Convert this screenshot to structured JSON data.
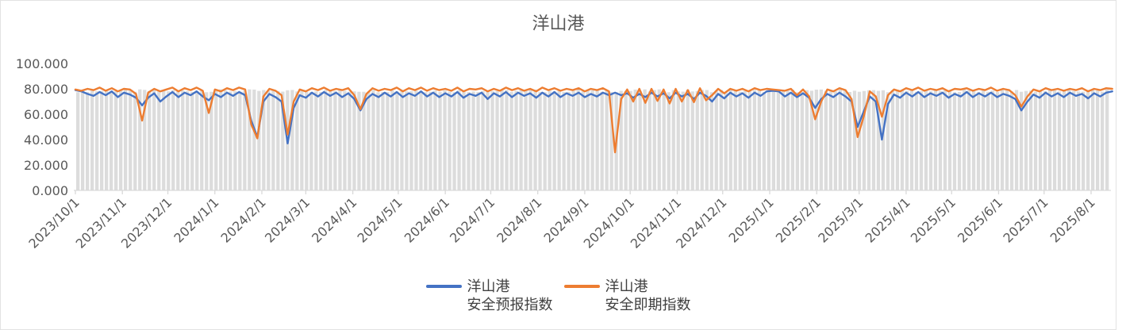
{
  "title": "洋山港",
  "legend": {
    "items": [
      {
        "line1": "洋山港",
        "line2": "安全预报指数",
        "color": "#4472C4"
      },
      {
        "line1": "洋山港",
        "line2": "安全即期指数",
        "color": "#ED7D31"
      }
    ]
  },
  "chart_data": {
    "type": "line",
    "title": "洋山港",
    "xlabel": "",
    "ylabel": "",
    "ylim": [
      0,
      100
    ],
    "grid": false,
    "legend_position": "bottom",
    "y_ticks": [
      {
        "value": 0,
        "label": "0.000"
      },
      {
        "value": 20,
        "label": "20.000"
      },
      {
        "value": 40,
        "label": "40.000"
      },
      {
        "value": 60,
        "label": "60.000"
      },
      {
        "value": 80,
        "label": "80.000"
      },
      {
        "value": 100,
        "label": "100.000"
      }
    ],
    "x_start_date": "2023/10/1",
    "x_end_day": 684,
    "sample_interval_days": 4,
    "x_ticks": [
      {
        "label": "2023/10/1",
        "day": 0
      },
      {
        "label": "2023/11/1",
        "day": 31
      },
      {
        "label": "2023/12/1",
        "day": 61
      },
      {
        "label": "2024/1/1",
        "day": 92
      },
      {
        "label": "2024/2/1",
        "day": 123
      },
      {
        "label": "2024/3/1",
        "day": 152
      },
      {
        "label": "2024/4/1",
        "day": 183
      },
      {
        "label": "2024/5/1",
        "day": 213
      },
      {
        "label": "2024/6/1",
        "day": 244
      },
      {
        "label": "2024/7/1",
        "day": 274
      },
      {
        "label": "2024/8/1",
        "day": 305
      },
      {
        "label": "2024/9/1",
        "day": 336
      },
      {
        "label": "2024/10/1",
        "day": 366
      },
      {
        "label": "2024/11/1",
        "day": 397
      },
      {
        "label": "2024/12/1",
        "day": 427
      },
      {
        "label": "2025/1/1",
        "day": 458
      },
      {
        "label": "2025/2/1",
        "day": 489
      },
      {
        "label": "2025/3/1",
        "day": 517
      },
      {
        "label": "2025/4/1",
        "day": 548
      },
      {
        "label": "2025/5/1",
        "day": 578
      },
      {
        "label": "2025/6/1",
        "day": 609
      },
      {
        "label": "2025/7/1",
        "day": 639
      },
      {
        "label": "2025/8/1",
        "day": 670
      }
    ],
    "series": [
      {
        "name": "洋山港安全预报指数",
        "color": "#4472C4",
        "values": [
          79,
          78,
          76,
          74.5,
          77.5,
          75,
          78,
          73.5,
          77,
          75.5,
          73,
          67,
          73,
          76.5,
          70,
          74,
          77.5,
          73.5,
          77,
          75,
          78,
          74,
          71,
          76,
          73.5,
          77,
          74.5,
          77.5,
          75,
          55,
          42,
          70,
          76,
          73.5,
          70,
          37,
          65,
          75,
          73,
          77,
          74,
          77.5,
          74.5,
          77,
          73.5,
          76.5,
          72,
          63,
          72,
          76,
          73.5,
          77,
          74,
          77.5,
          73.5,
          76.5,
          74.5,
          78,
          74,
          77,
          73.5,
          76.5,
          74,
          77.5,
          73,
          76,
          74.5,
          77,
          72,
          76.5,
          74,
          77.5,
          73.5,
          77,
          74.5,
          76.5,
          73,
          77,
          74,
          77.5,
          73.5,
          76.5,
          74.5,
          77,
          73.5,
          76,
          74,
          77,
          75,
          77,
          75,
          76.5,
          73,
          76,
          73.5,
          77,
          74,
          76.5,
          72.5,
          77,
          74,
          76,
          72,
          77,
          74.5,
          70,
          76,
          72.5,
          77,
          74,
          76.5,
          73,
          77,
          74.5,
          78,
          78.5,
          78,
          74,
          77,
          73.5,
          76.5,
          73,
          65,
          72,
          76,
          73.5,
          77,
          74,
          70,
          50,
          62,
          74,
          70,
          40,
          68,
          75.5,
          73,
          77,
          74,
          77.5,
          73.5,
          76.5,
          74.5,
          77,
          73,
          76,
          74,
          77.5,
          73.5,
          76.5,
          74,
          77,
          73.5,
          76,
          74.5,
          72,
          63,
          70,
          75.5,
          73,
          77,
          74,
          76.5,
          73.5,
          77,
          74.5,
          76,
          72.5,
          76.5,
          74,
          77,
          78
        ]
      },
      {
        "name": "洋山港安全即期指数",
        "color": "#ED7D31",
        "values": [
          79.5,
          78.5,
          80,
          79,
          81,
          78.5,
          80.5,
          78,
          80,
          79.5,
          76,
          55,
          77,
          80,
          78,
          79.5,
          81,
          78,
          80.5,
          79,
          81,
          78.5,
          61,
          79.5,
          78,
          80.5,
          79,
          81,
          79.5,
          52,
          41,
          74,
          80,
          78.5,
          75,
          44,
          70,
          79.5,
          78,
          80.5,
          79,
          81,
          78.5,
          80,
          79,
          80.5,
          75,
          64,
          76,
          80.5,
          78.5,
          80,
          79,
          81,
          78,
          80.5,
          79,
          81,
          78.5,
          80.5,
          79,
          80,
          78.5,
          81,
          78,
          80,
          79.5,
          80.5,
          78,
          80,
          78.5,
          81,
          79,
          80.5,
          78.5,
          80,
          78,
          81,
          79,
          80.5,
          78.5,
          80,
          79,
          80.5,
          78,
          80,
          79,
          80.5,
          78,
          30,
          72,
          79.5,
          70,
          80,
          69,
          80,
          70.5,
          79.5,
          68.5,
          80,
          70,
          79,
          69.5,
          80.5,
          71,
          75,
          80,
          76.5,
          80,
          78.5,
          80,
          78,
          80.5,
          79,
          80,
          79.5,
          79,
          78.5,
          80,
          75,
          79.5,
          74,
          56,
          70,
          79.5,
          78,
          80.5,
          79,
          72,
          42,
          58,
          78,
          74,
          58,
          75,
          79.5,
          78,
          80.5,
          79,
          81,
          78.5,
          80,
          79,
          80.5,
          78,
          80,
          79.5,
          80.5,
          78.5,
          80,
          79,
          81,
          78.5,
          80,
          79,
          75,
          66,
          74,
          79.5,
          78,
          80.5,
          79,
          80,
          78.5,
          80,
          79,
          80.5,
          78,
          80,
          79,
          80.5,
          80
        ]
      }
    ],
    "background_bars": {
      "description": "dense light-gray columns behind the lines, near-constant height",
      "color": "#DCDCDC",
      "count": 217,
      "value_min": 77.3,
      "value_max": 79.6
    },
    "axis_color": "#D9D9D9",
    "label_color": "#595959"
  }
}
